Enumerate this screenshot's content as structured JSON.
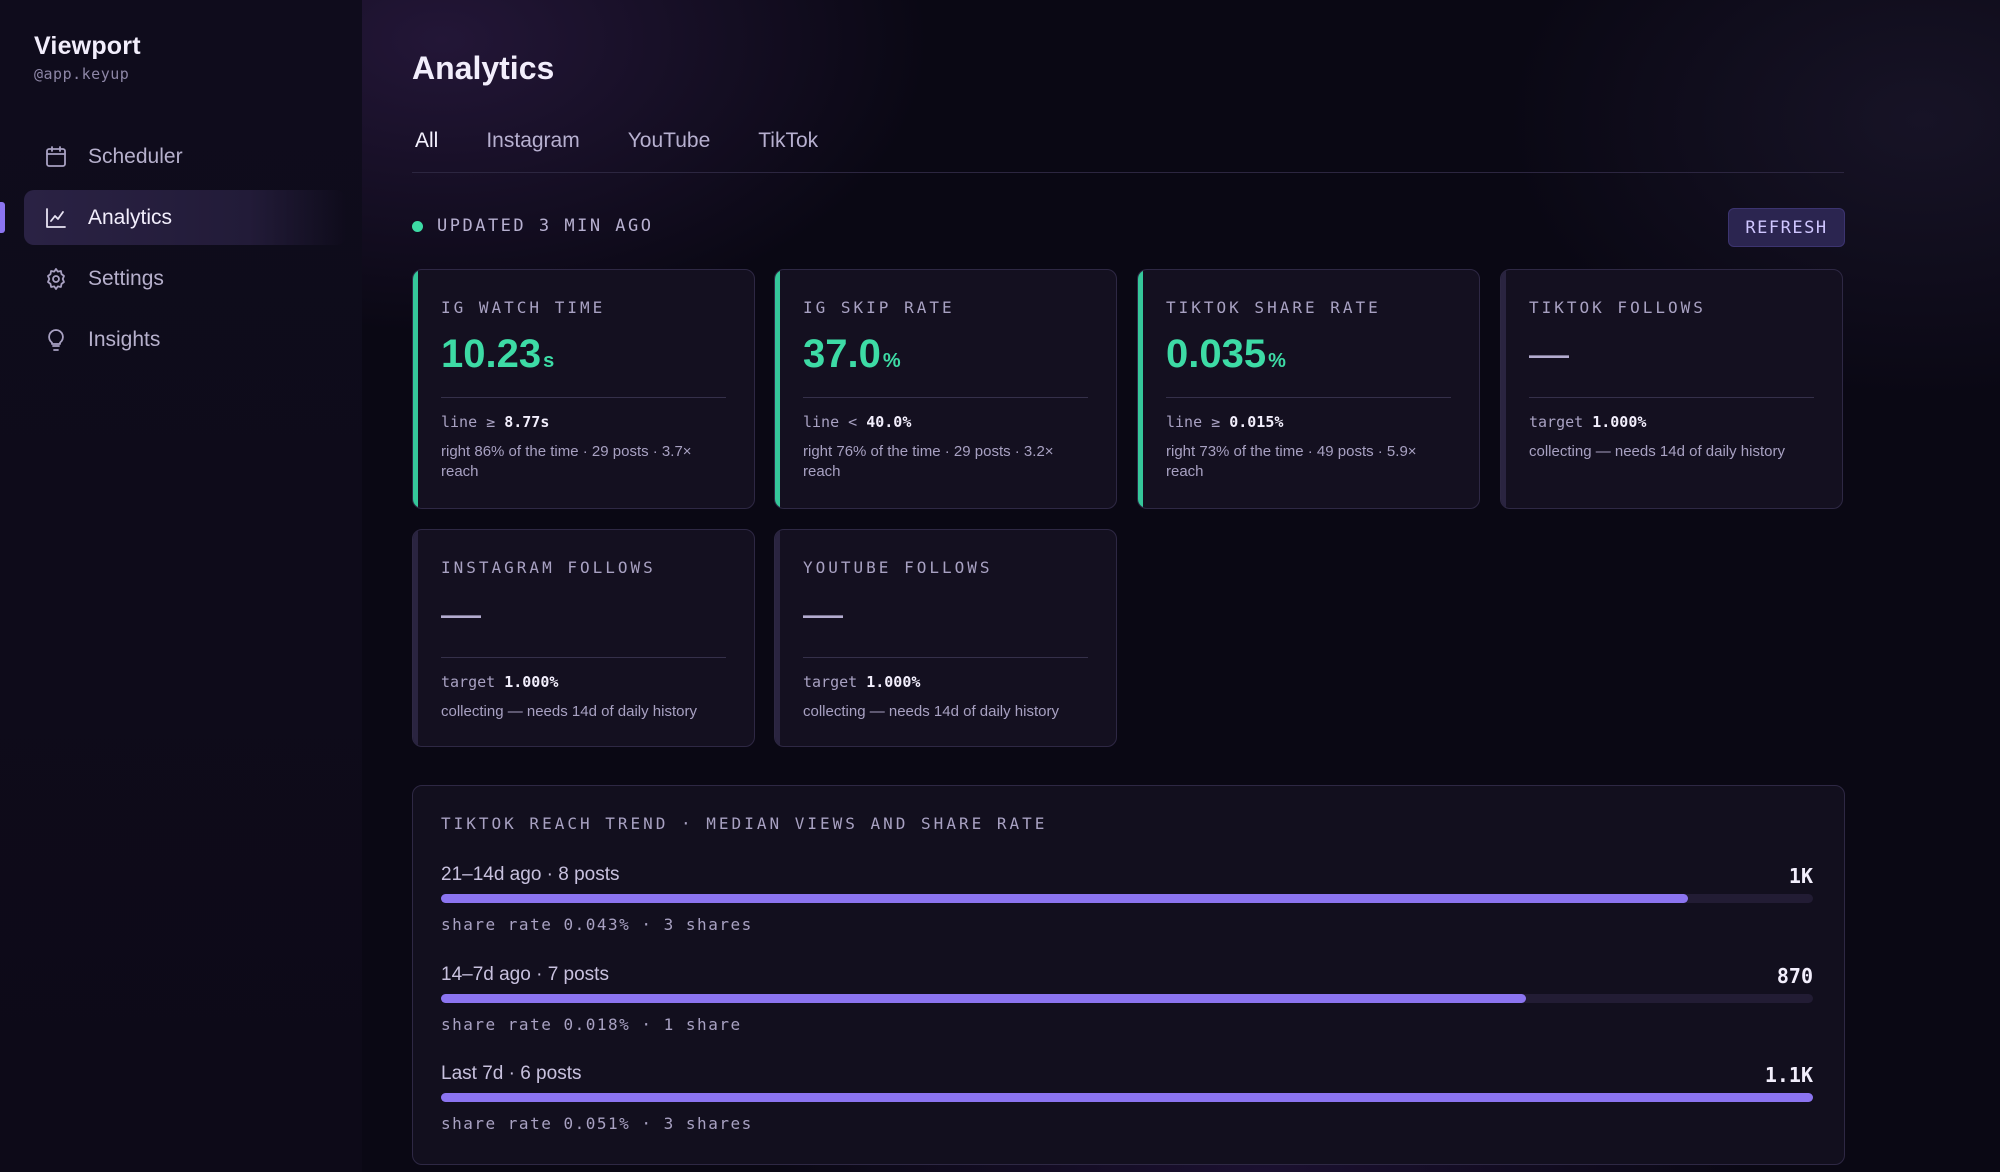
{
  "app": {
    "name": "Viewport",
    "handle": "@app.keyup"
  },
  "sidebar": {
    "items": [
      {
        "label": "Scheduler",
        "icon": "calendar-icon",
        "active": false
      },
      {
        "label": "Analytics",
        "icon": "chart-line-icon",
        "active": true
      },
      {
        "label": "Settings",
        "icon": "gear-icon",
        "active": false
      },
      {
        "label": "Insights",
        "icon": "lightbulb-icon",
        "active": false
      }
    ]
  },
  "header": {
    "title": "Analytics"
  },
  "tabs": [
    {
      "label": "All",
      "active": true
    },
    {
      "label": "Instagram",
      "active": false
    },
    {
      "label": "YouTube",
      "active": false
    },
    {
      "label": "TikTok",
      "active": false
    }
  ],
  "status": {
    "text": "UPDATED 3 MIN AGO",
    "refresh_label": "REFRESH"
  },
  "metrics": [
    {
      "label": "IG WATCH TIME",
      "value": "10.23",
      "unit": "s",
      "line_prefix": "line ≥",
      "line_value": "8.77s",
      "note": "right 86% of the time · 29 posts · 3.7× reach",
      "state": "good"
    },
    {
      "label": "IG SKIP RATE",
      "value": "37.0",
      "unit": "%",
      "line_prefix": "line <",
      "line_value": "40.0%",
      "note": "right 76% of the time · 29 posts · 3.2× reach",
      "state": "good"
    },
    {
      "label": "TIKTOK SHARE RATE",
      "value": "0.035",
      "unit": "%",
      "line_prefix": "line ≥",
      "line_value": "0.015%",
      "note": "right 73% of the time · 49 posts · 5.9× reach",
      "state": "good"
    },
    {
      "label": "TIKTOK FOLLOWS",
      "value": "—",
      "unit": "",
      "line_prefix": "target",
      "line_value": "1.000%",
      "note": "collecting — needs 14d of daily history",
      "state": "collecting"
    },
    {
      "label": "INSTAGRAM FOLLOWS",
      "value": "—",
      "unit": "",
      "line_prefix": "target",
      "line_value": "1.000%",
      "note": "collecting — needs 14d of daily history",
      "state": "collecting"
    },
    {
      "label": "YOUTUBE FOLLOWS",
      "value": "—",
      "unit": "",
      "line_prefix": "target",
      "line_value": "1.000%",
      "note": "collecting — needs 14d of daily history",
      "state": "collecting"
    }
  ],
  "trend": {
    "title": "TIKTOK REACH TREND · MEDIAN VIEWS AND SHARE RATE",
    "rows": [
      {
        "period": "21–14d ago · 8 posts",
        "value_label": "1K",
        "value": 1000,
        "sub": "share rate 0.043% · 3 shares"
      },
      {
        "period": "14–7d ago · 7 posts",
        "value_label": "870",
        "value": 870,
        "sub": "share rate 0.018% · 1 share"
      },
      {
        "period": "Last 7d · 6 posts",
        "value_label": "1.1K",
        "value": 1100,
        "sub": "share rate 0.051% · 3 shares"
      }
    ],
    "max": 1100
  },
  "colors": {
    "accent": "#8b74f0",
    "good": "#3ddba5",
    "background": "#0a0814"
  }
}
